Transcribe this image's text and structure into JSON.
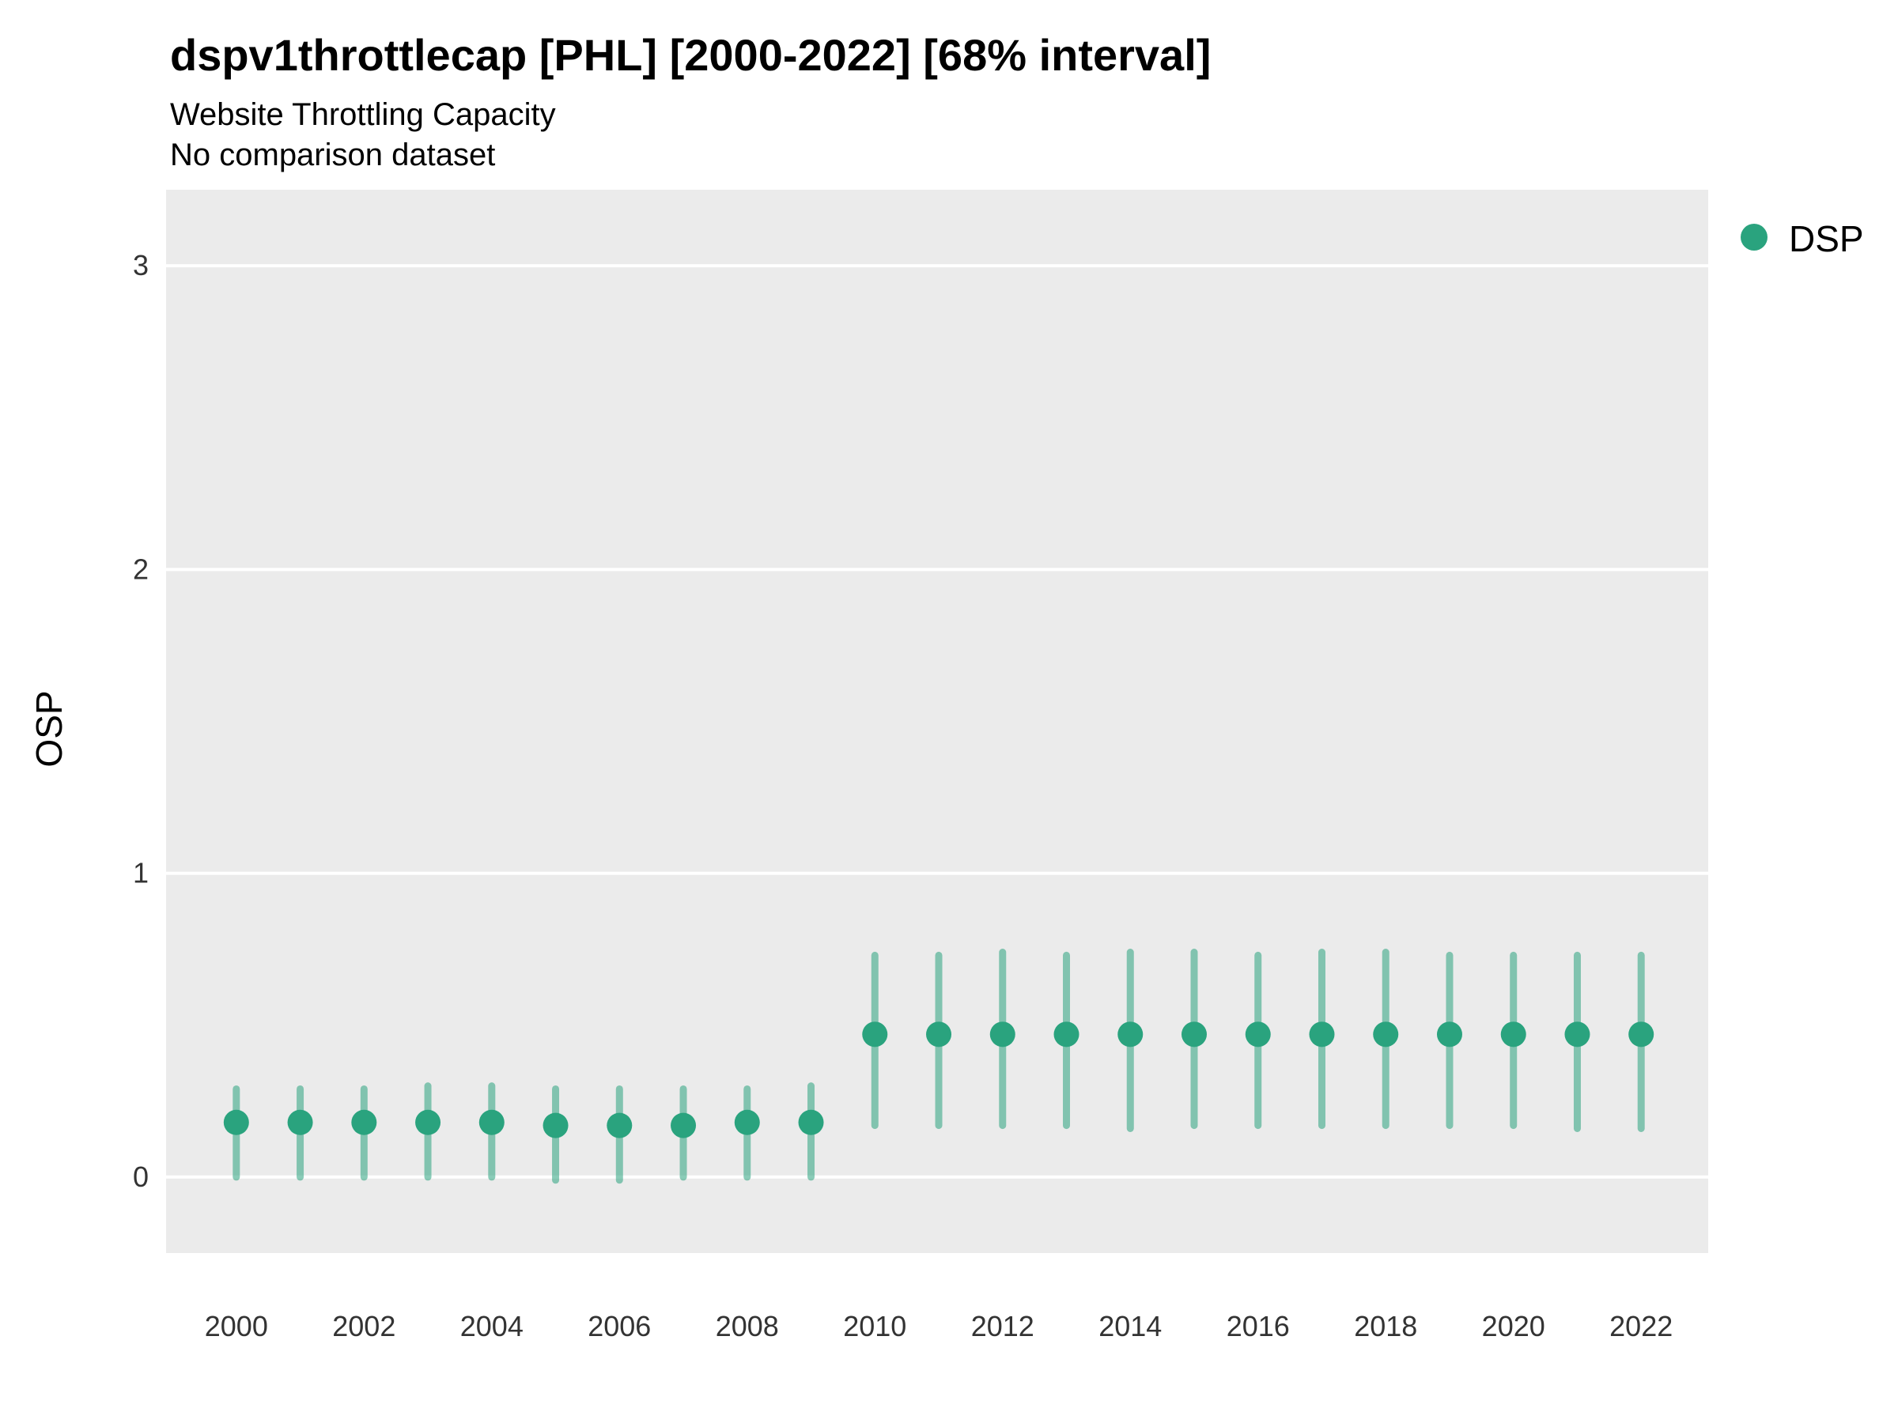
{
  "chart_data": {
    "type": "scatter",
    "title": "dspv1throttlecap [PHL] [2000-2022] [68% interval]",
    "subtitle": "Website Throttling Capacity",
    "subtitle2": "No comparison dataset",
    "xlabel": "",
    "ylabel": "OSP",
    "legend_position": "right",
    "legend_entries": [
      "DSP"
    ],
    "x": [
      2000,
      2001,
      2002,
      2003,
      2004,
      2005,
      2006,
      2007,
      2008,
      2009,
      2010,
      2011,
      2012,
      2013,
      2014,
      2015,
      2016,
      2017,
      2018,
      2019,
      2020,
      2021,
      2022
    ],
    "series": [
      {
        "name": "DSP",
        "mid": [
          0.18,
          0.18,
          0.18,
          0.18,
          0.18,
          0.17,
          0.17,
          0.17,
          0.18,
          0.18,
          0.47,
          0.47,
          0.47,
          0.47,
          0.47,
          0.47,
          0.47,
          0.47,
          0.47,
          0.47,
          0.47,
          0.47,
          0.47
        ],
        "lo": [
          0.0,
          0.0,
          0.0,
          0.0,
          0.0,
          -0.01,
          -0.01,
          0.0,
          0.0,
          0.0,
          0.17,
          0.17,
          0.17,
          0.17,
          0.16,
          0.17,
          0.17,
          0.17,
          0.17,
          0.17,
          0.17,
          0.16,
          0.16
        ],
        "hi": [
          0.29,
          0.29,
          0.29,
          0.3,
          0.3,
          0.29,
          0.29,
          0.29,
          0.29,
          0.3,
          0.73,
          0.73,
          0.74,
          0.73,
          0.74,
          0.74,
          0.73,
          0.74,
          0.74,
          0.73,
          0.73,
          0.73,
          0.73
        ]
      }
    ],
    "interval_label": "68% interval",
    "xticks": [
      2000,
      2002,
      2004,
      2006,
      2008,
      2010,
      2012,
      2014,
      2016,
      2018,
      2020,
      2022
    ],
    "yticks": [
      0,
      1,
      2,
      3
    ],
    "xlim": [
      1998.9,
      2023.05
    ],
    "ylim": [
      -0.25,
      3.25
    ],
    "grid": "major-horizontal-white",
    "colors": {
      "point": "#2aa37e",
      "errorbar": "rgba(42,163,126,0.55)",
      "panel_background": "#ebebeb",
      "gridline": "#ffffff",
      "text": "#000000",
      "tick_text": "#333333"
    }
  }
}
